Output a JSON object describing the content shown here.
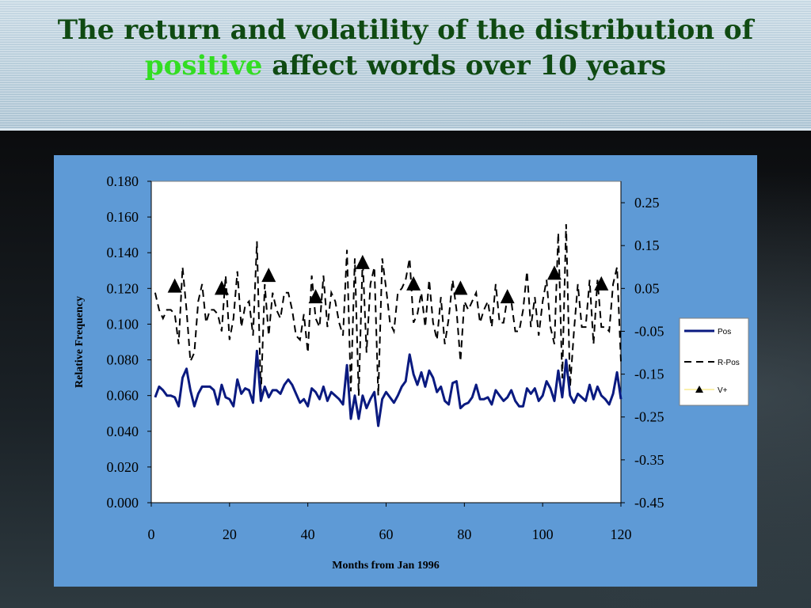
{
  "slide": {
    "title_part1": "The return and volatility of the distribution of",
    "title_highlight": "positive",
    "title_part2": "affect words over 10 years",
    "highlight_color": "#33dd22",
    "title_color": "#0f4a12"
  },
  "chart_data": {
    "type": "line",
    "xlabel": "Months from Jan 1996",
    "ylabel": "Relative Frequency",
    "xlim": [
      0,
      120
    ],
    "ylim": [
      0.0,
      0.18
    ],
    "y2lim": [
      -0.45,
      0.3
    ],
    "x_ticks": [
      "0",
      "20",
      "40",
      "60",
      "80",
      "100",
      "120"
    ],
    "y_ticks": [
      "0.000",
      "0.020",
      "0.040",
      "0.060",
      "0.080",
      "0.100",
      "0.120",
      "0.140",
      "0.160",
      "0.180"
    ],
    "y2_ticks": [
      "-0.45",
      "-0.35",
      "-0.25",
      "-0.15",
      "-0.05",
      "0.05",
      "0.15",
      "0.25"
    ],
    "legend_position": "right",
    "grid": false,
    "series": [
      {
        "name": "Pos",
        "axis": "left",
        "color": "#0a1a80",
        "x": [
          1,
          2,
          3,
          4,
          5,
          6,
          7,
          8,
          9,
          10,
          11,
          12,
          13,
          14,
          15,
          16,
          17,
          18,
          19,
          20,
          21,
          22,
          23,
          24,
          25,
          26,
          27,
          28,
          29,
          30,
          31,
          32,
          33,
          34,
          35,
          36,
          37,
          38,
          39,
          40,
          41,
          42,
          43,
          44,
          45,
          46,
          47,
          48,
          49,
          50,
          51,
          52,
          53,
          54,
          55,
          56,
          57,
          58,
          59,
          60,
          61,
          62,
          63,
          64,
          65,
          66,
          67,
          68,
          69,
          70,
          71,
          72,
          73,
          74,
          75,
          76,
          77,
          78,
          79,
          80,
          81,
          82,
          83,
          84,
          85,
          86,
          87,
          88,
          89,
          90,
          91,
          92,
          93,
          94,
          95,
          96,
          97,
          98,
          99,
          100,
          101,
          102,
          103,
          104,
          105,
          106,
          107,
          108,
          109,
          110,
          111,
          112,
          113,
          114,
          115,
          116,
          117,
          118,
          119,
          120
        ],
        "values": [
          0.059,
          0.065,
          0.063,
          0.06,
          0.06,
          0.059,
          0.054,
          0.07,
          0.075,
          0.063,
          0.054,
          0.061,
          0.065,
          0.065,
          0.065,
          0.063,
          0.055,
          0.066,
          0.059,
          0.058,
          0.054,
          0.069,
          0.061,
          0.064,
          0.063,
          0.056,
          0.085,
          0.057,
          0.065,
          0.059,
          0.063,
          0.063,
          0.061,
          0.066,
          0.069,
          0.066,
          0.061,
          0.056,
          0.058,
          0.054,
          0.064,
          0.062,
          0.058,
          0.065,
          0.057,
          0.062,
          0.06,
          0.058,
          0.055,
          0.077,
          0.047,
          0.06,
          0.047,
          0.06,
          0.053,
          0.058,
          0.062,
          0.043,
          0.058,
          0.062,
          0.059,
          0.056,
          0.06,
          0.065,
          0.068,
          0.083,
          0.072,
          0.066,
          0.073,
          0.065,
          0.074,
          0.07,
          0.062,
          0.065,
          0.057,
          0.055,
          0.067,
          0.068,
          0.053,
          0.055,
          0.056,
          0.059,
          0.066,
          0.058,
          0.058,
          0.059,
          0.055,
          0.063,
          0.06,
          0.057,
          0.059,
          0.063,
          0.057,
          0.054,
          0.054,
          0.064,
          0.061,
          0.064,
          0.057,
          0.06,
          0.068,
          0.064,
          0.057,
          0.074,
          0.059,
          0.08,
          0.06,
          0.056,
          0.061,
          0.059,
          0.057,
          0.066,
          0.058,
          0.065,
          0.06,
          0.058,
          0.055,
          0.061,
          0.073,
          0.058
        ]
      },
      {
        "name": "R-Pos",
        "axis": "right",
        "color": "#000000",
        "x": [
          1,
          2,
          3,
          4,
          5,
          6,
          7,
          8,
          9,
          10,
          11,
          12,
          13,
          14,
          15,
          16,
          17,
          18,
          19,
          20,
          21,
          22,
          23,
          24,
          25,
          26,
          27,
          28,
          29,
          30,
          31,
          32,
          33,
          34,
          35,
          36,
          37,
          38,
          39,
          40,
          41,
          42,
          43,
          44,
          45,
          46,
          47,
          48,
          49,
          50,
          51,
          52,
          53,
          54,
          55,
          56,
          57,
          58,
          59,
          60,
          61,
          62,
          63,
          64,
          65,
          66,
          67,
          68,
          69,
          70,
          71,
          72,
          73,
          74,
          75,
          76,
          77,
          78,
          79,
          80,
          81,
          82,
          83,
          84,
          85,
          86,
          87,
          88,
          89,
          90,
          91,
          92,
          93,
          94,
          95,
          96,
          97,
          98,
          99,
          100,
          101,
          102,
          103,
          104,
          105,
          106,
          107,
          108,
          109,
          110,
          111,
          112,
          113,
          114,
          115,
          116,
          117,
          118,
          119,
          120
        ],
        "values": [
          0.04,
          0.0,
          -0.02,
          0.0,
          0.0,
          -0.01,
          -0.08,
          0.1,
          0.0,
          -0.12,
          -0.1,
          0.02,
          0.06,
          -0.03,
          0.0,
          0.0,
          -0.01,
          -0.05,
          0.08,
          -0.07,
          -0.02,
          0.09,
          -0.04,
          0.01,
          0.02,
          -0.06,
          0.16,
          -0.2,
          0.06,
          -0.06,
          0.04,
          0.0,
          -0.02,
          0.04,
          0.04,
          0.0,
          -0.06,
          -0.07,
          -0.01,
          -0.1,
          0.08,
          -0.02,
          -0.04,
          0.08,
          -0.04,
          0.04,
          0.02,
          -0.03,
          -0.06,
          0.14,
          -0.19,
          0.12,
          -0.2,
          0.12,
          -0.1,
          0.06,
          0.1,
          -0.2,
          0.12,
          0.05,
          -0.03,
          -0.05,
          0.04,
          0.05,
          0.07,
          0.12,
          -0.03,
          -0.01,
          0.04,
          -0.04,
          0.07,
          -0.03,
          -0.07,
          0.03,
          -0.08,
          -0.02,
          0.07,
          0.0,
          -0.12,
          0.02,
          0.0,
          0.02,
          0.04,
          -0.03,
          0.0,
          0.02,
          -0.04,
          0.06,
          -0.03,
          -0.03,
          0.03,
          0.02,
          -0.05,
          -0.05,
          0.0,
          0.09,
          -0.04,
          0.03,
          -0.06,
          0.02,
          0.07,
          -0.04,
          -0.08,
          0.18,
          -0.16,
          0.2,
          -0.18,
          -0.05,
          0.06,
          -0.04,
          -0.04,
          0.07,
          -0.08,
          0.07,
          -0.04,
          -0.04,
          -0.05,
          0.06,
          0.1,
          -0.12
        ]
      },
      {
        "name": "V+",
        "axis": "right",
        "color": "#000000",
        "marker": "triangle",
        "x": [
          6,
          18,
          30,
          42,
          54,
          67,
          79,
          91,
          103,
          115
        ],
        "values": [
          0.055,
          0.05,
          0.08,
          0.03,
          0.11,
          0.06,
          0.05,
          0.03,
          0.085,
          0.06
        ]
      }
    ]
  }
}
